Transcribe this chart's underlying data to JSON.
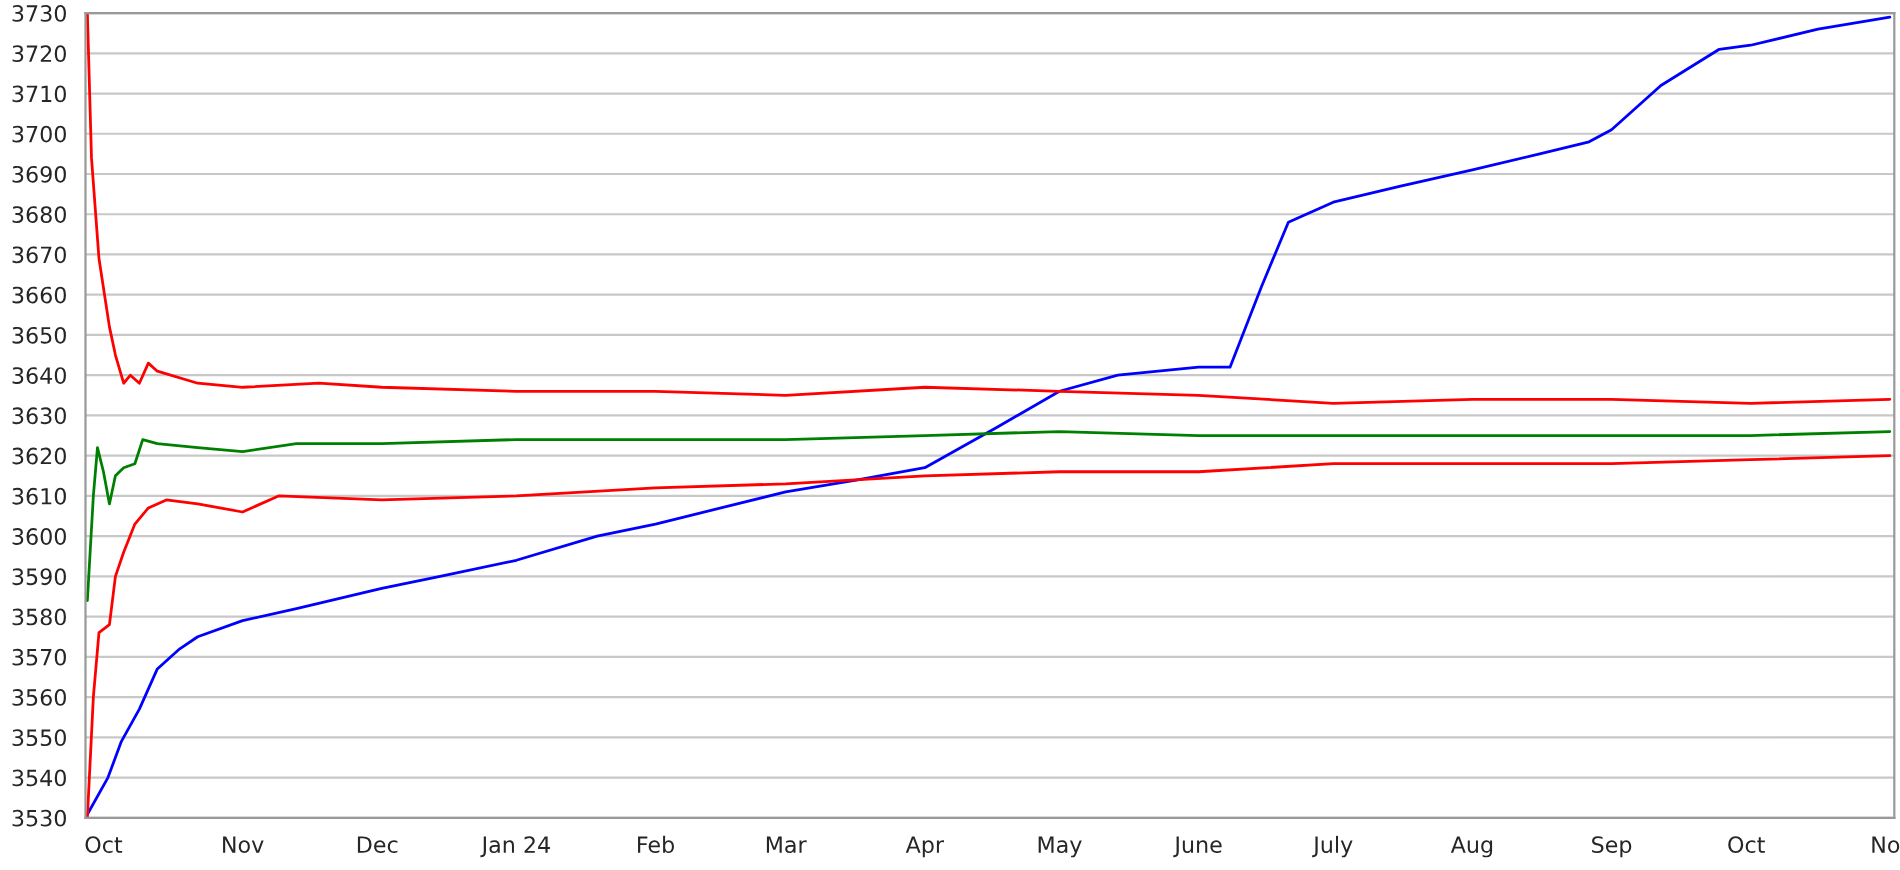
{
  "chart_data": {
    "type": "line",
    "xlim": [
      "2023-09-27",
      "2024-11-03"
    ],
    "ylim": [
      3530,
      3730
    ],
    "yticks": [
      3530,
      3540,
      3550,
      3560,
      3570,
      3580,
      3590,
      3600,
      3610,
      3620,
      3630,
      3640,
      3650,
      3660,
      3670,
      3680,
      3690,
      3700,
      3710,
      3720,
      3730
    ],
    "xticks": [
      {
        "value": "2023-10-01",
        "label": "Oct"
      },
      {
        "value": "2023-11-01",
        "label": "Nov"
      },
      {
        "value": "2023-12-01",
        "label": "Dec"
      },
      {
        "value": "2024-01-01",
        "label": "Jan 24"
      },
      {
        "value": "2024-02-01",
        "label": "Feb"
      },
      {
        "value": "2024-03-01",
        "label": "Mar"
      },
      {
        "value": "2024-04-01",
        "label": "Apr"
      },
      {
        "value": "2024-05-01",
        "label": "May"
      },
      {
        "value": "2024-06-01",
        "label": "June"
      },
      {
        "value": "2024-07-01",
        "label": "July"
      },
      {
        "value": "2024-08-01",
        "label": "Aug"
      },
      {
        "value": "2024-09-01",
        "label": "Sep"
      },
      {
        "value": "2024-10-01",
        "label": "Oct"
      },
      {
        "value": "2024-11-01",
        "label": "No"
      }
    ],
    "grid": "y",
    "marker": "none",
    "line_style": "solid",
    "series": [
      {
        "color": "#0000ff",
        "x": [
          "2023-09-27",
          "2023-10-02",
          "2023-10-05",
          "2023-10-09",
          "2023-10-13",
          "2023-10-18",
          "2023-10-22",
          "2023-11-01",
          "2023-11-13",
          "2023-12-02",
          "2023-12-15",
          "2024-01-01",
          "2024-01-19",
          "2024-02-01",
          "2024-03-01",
          "2024-03-17",
          "2024-04-01",
          "2024-04-17",
          "2024-05-01",
          "2024-05-14",
          "2024-06-01",
          "2024-06-08",
          "2024-06-15",
          "2024-06-21",
          "2024-07-01",
          "2024-07-16",
          "2024-08-01",
          "2024-08-16",
          "2024-08-27",
          "2024-09-01",
          "2024-09-12",
          "2024-09-25",
          "2024-10-02",
          "2024-10-17",
          "2024-11-02"
        ],
        "values": [
          3530,
          3540,
          3549,
          3557,
          3567,
          3572,
          3575,
          3579,
          3582,
          3587,
          3590,
          3594,
          3600,
          3603,
          3611,
          3614,
          3617,
          3627,
          3636,
          3640,
          3642,
          3642,
          3662,
          3678,
          3683,
          3687,
          3691,
          3695,
          3698,
          3701,
          3712,
          3721,
          3722,
          3726,
          3729
        ]
      },
      {
        "color": "#ff0000",
        "x": [
          "2023-09-27T10:00",
          "2023-09-28T08:00",
          "2023-09-30",
          "2023-10-02T08:00",
          "2023-10-03T16:00",
          "2023-10-05T12:00",
          "2023-10-07",
          "2023-10-09",
          "2023-10-11",
          "2023-10-13",
          "2023-10-22",
          "2023-11-01",
          "2023-11-18",
          "2023-12-02",
          "2024-01-01",
          "2024-02-01",
          "2024-03-01",
          "2024-04-01",
          "2024-05-01",
          "2024-06-01",
          "2024-07-01",
          "2024-08-01",
          "2024-09-01",
          "2024-10-02",
          "2024-11-02"
        ],
        "values": [
          3730,
          3694,
          3669,
          3652,
          3645,
          3638,
          3640,
          3638,
          3643,
          3641,
          3638,
          3637,
          3638,
          3637,
          3636,
          3636,
          3635,
          3637,
          3636,
          3635,
          3633,
          3634,
          3634,
          3633,
          3634
        ]
      },
      {
        "color": "#008000",
        "x": [
          "2023-09-27T10:00",
          "2023-09-28T18:00",
          "2023-09-29T16:00",
          "2023-10-01",
          "2023-10-02T08:00",
          "2023-10-03T16:00",
          "2023-10-05T12:00",
          "2023-10-08",
          "2023-10-09T18:00",
          "2023-10-13",
          "2023-10-22",
          "2023-11-01",
          "2023-11-13",
          "2023-12-02",
          "2024-01-01",
          "2024-02-01",
          "2024-03-01",
          "2024-04-01",
          "2024-05-01",
          "2024-06-01",
          "2024-07-01",
          "2024-08-01",
          "2024-09-01",
          "2024-10-02",
          "2024-11-02"
        ],
        "values": [
          3584,
          3610,
          3622,
          3616,
          3608,
          3615,
          3617,
          3618,
          3624,
          3623,
          3622,
          3621,
          3623,
          3623,
          3624,
          3624,
          3624,
          3625,
          3626,
          3625,
          3625,
          3625,
          3625,
          3625,
          3626
        ]
      },
      {
        "color": "#ff0000",
        "x": [
          "2023-09-27T10:00",
          "2023-09-28T18:00",
          "2023-09-30",
          "2023-10-02T08:00",
          "2023-10-03T16:00",
          "2023-10-05T12:00",
          "2023-10-08",
          "2023-10-11",
          "2023-10-15",
          "2023-10-22",
          "2023-11-01",
          "2023-11-09",
          "2023-12-02",
          "2024-01-01",
          "2024-02-01",
          "2024-03-01",
          "2024-04-01",
          "2024-05-01",
          "2024-06-01",
          "2024-07-01",
          "2024-08-01",
          "2024-09-01",
          "2024-10-02",
          "2024-11-02"
        ],
        "values": [
          3530,
          3560,
          3576,
          3578,
          3590,
          3596,
          3603,
          3607,
          3609,
          3608,
          3606,
          3610,
          3609,
          3610,
          3612,
          3613,
          3615,
          3616,
          3616,
          3618,
          3618,
          3618,
          3619,
          3620
        ]
      }
    ]
  }
}
